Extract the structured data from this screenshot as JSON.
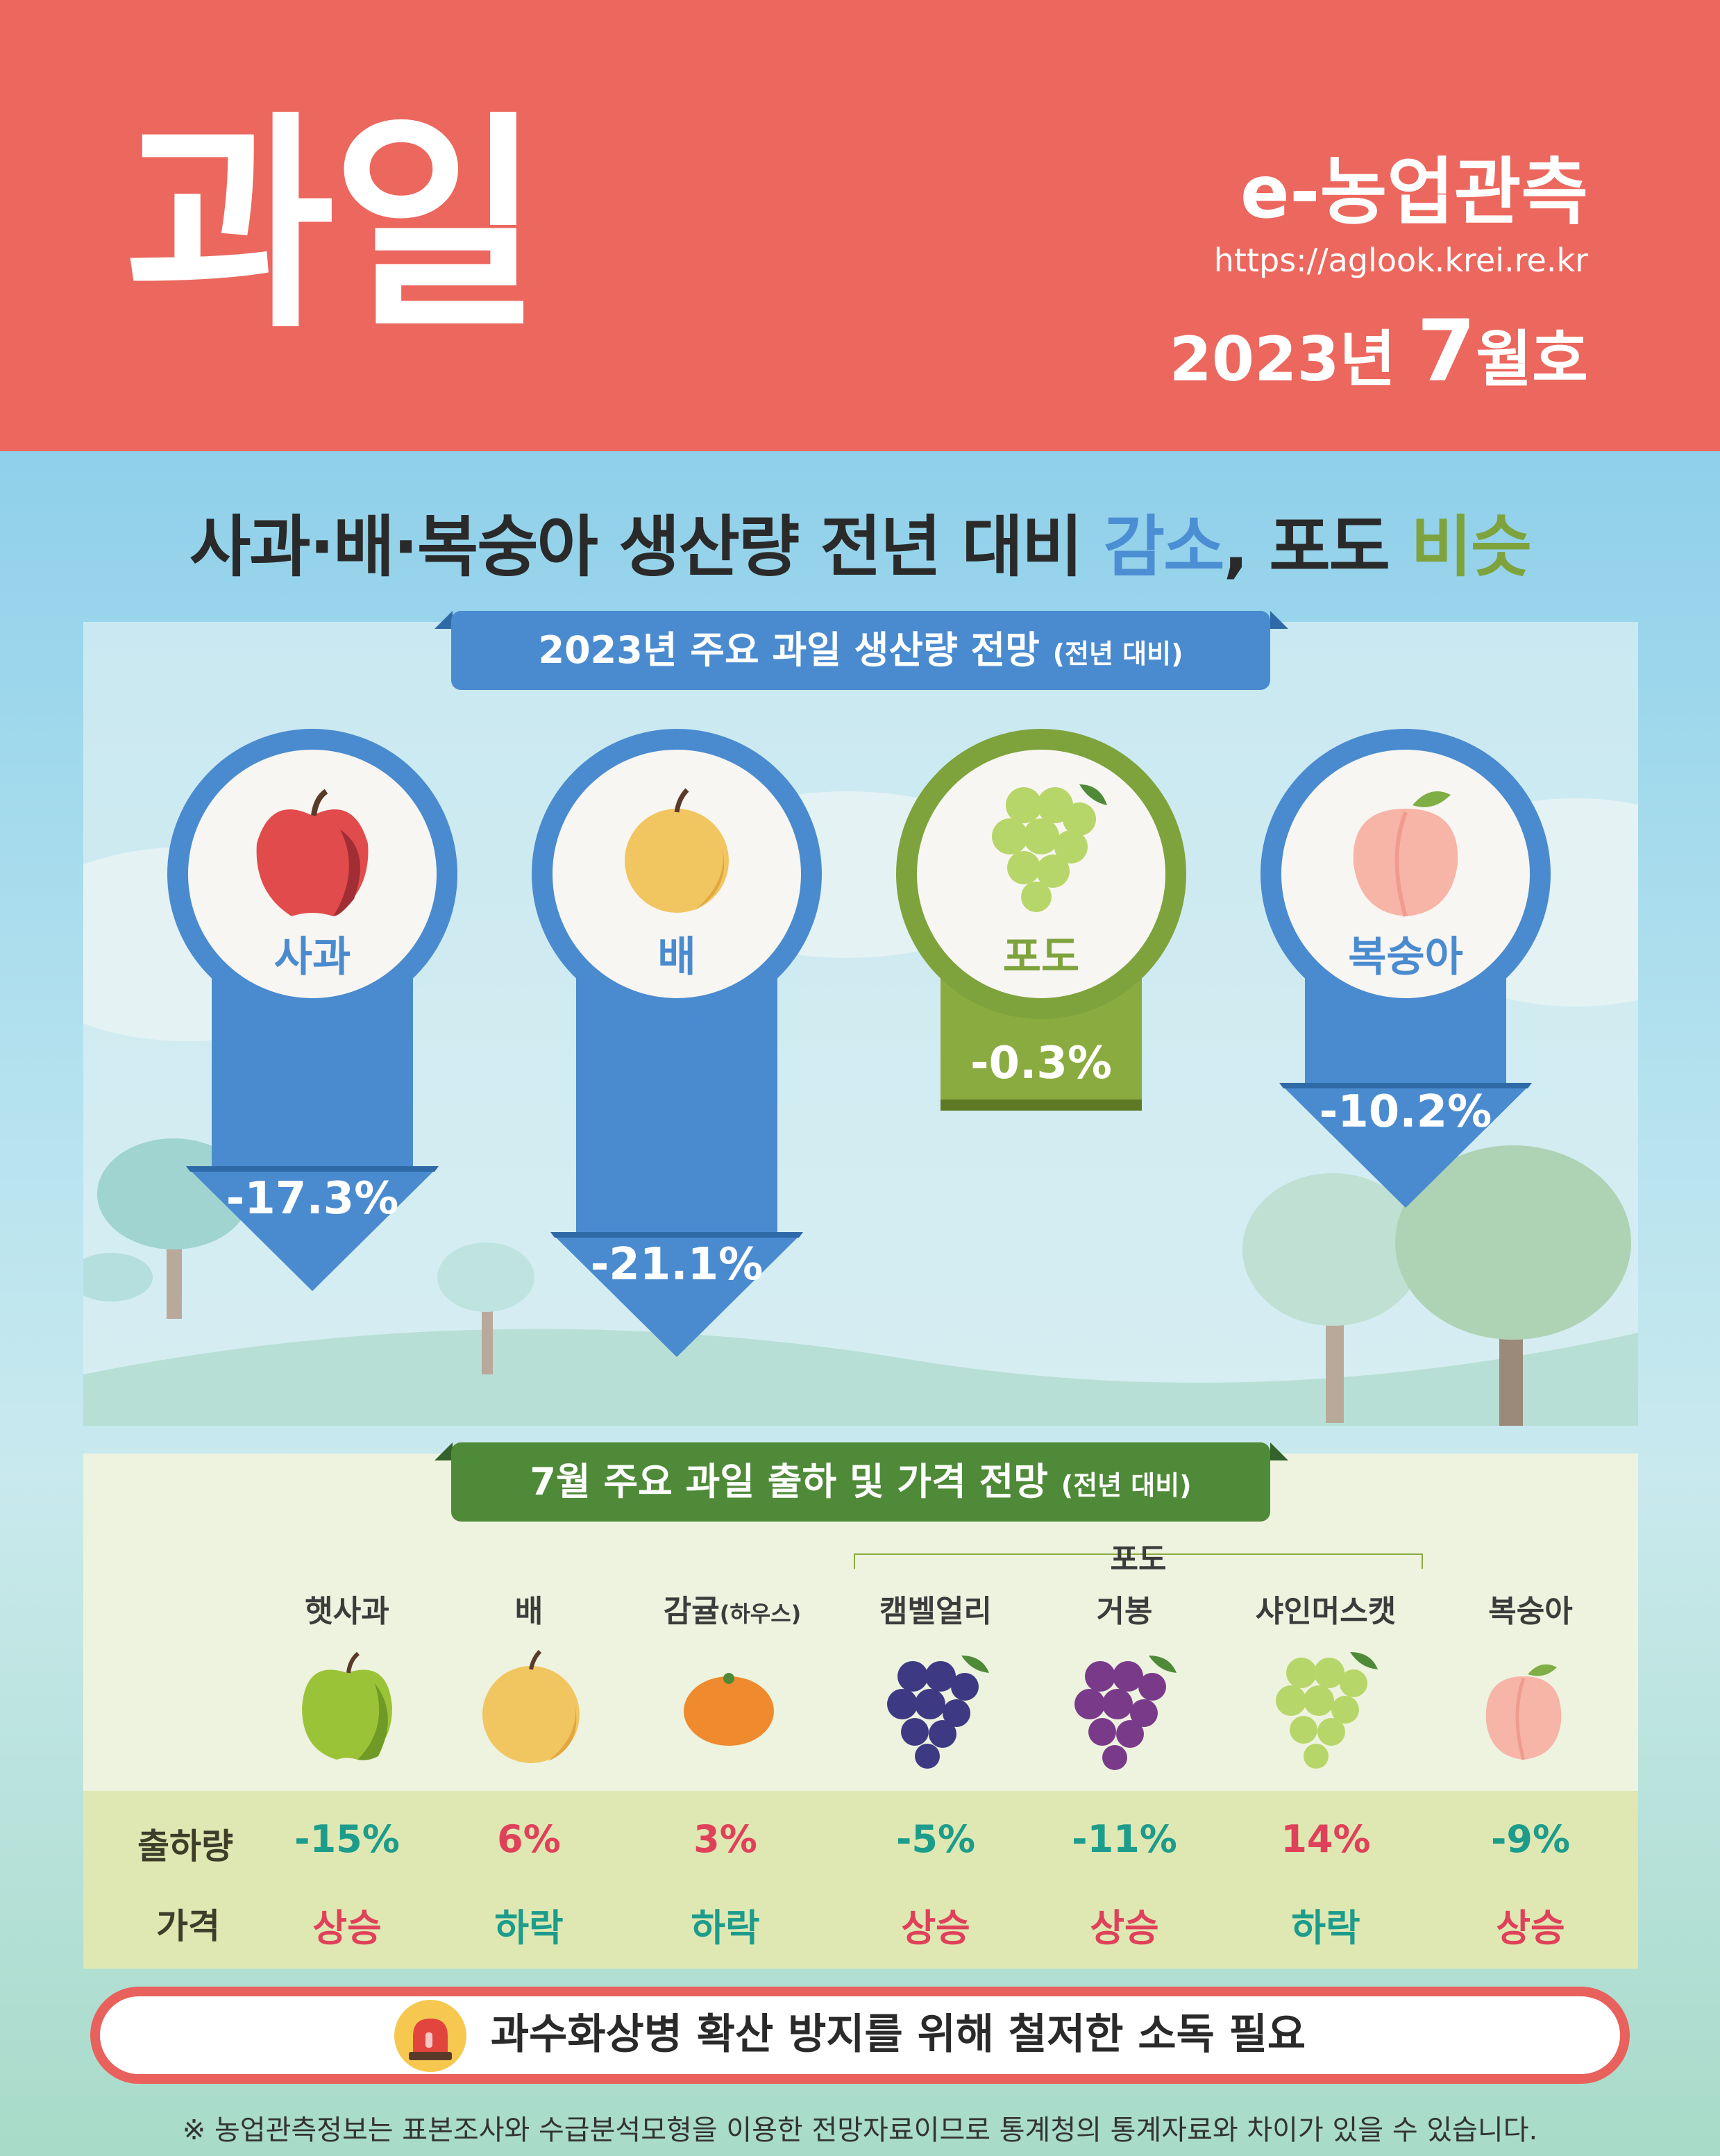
{
  "header": {
    "title": "과일",
    "brand": "e-농업관측",
    "url": "https://aglook.krei.re.kr",
    "issue_year": "2023년",
    "issue_month": "7",
    "issue_suffix": "월호"
  },
  "headline": {
    "part1": "사과·배·복숭아 생산량 전년 대비 ",
    "decrease": "감소",
    "part2": ", 포도 ",
    "similar": "비슷"
  },
  "production": {
    "title": "2023년 주요 과일 생산량 전망",
    "title_note": "(전년 대비)",
    "items": [
      {
        "name": "사과",
        "change": "-17.3%",
        "icon": "apple-icon",
        "color": "#4a8bd0"
      },
      {
        "name": "배",
        "change": "-21.1%",
        "icon": "pear-icon",
        "color": "#4a8bd0"
      },
      {
        "name": "포도",
        "change": "-0.3%",
        "icon": "grape-icon",
        "color": "#7ea33d"
      },
      {
        "name": "복숭아",
        "change": "-10.2%",
        "icon": "peach-icon",
        "color": "#4a8bd0"
      }
    ]
  },
  "shipment": {
    "title": "7월 주요 과일 출하 및 가격 전망",
    "title_note": "(전년 대비)",
    "grape_group": "포도",
    "row_labels": {
      "volume": "출하량",
      "price": "가격"
    },
    "columns": [
      {
        "name": "햇사과",
        "note": "",
        "volume": "-15%",
        "price": "상승",
        "icon": "green-apple-icon"
      },
      {
        "name": "배",
        "note": "",
        "volume": "6%",
        "price": "하락",
        "icon": "pear-icon"
      },
      {
        "name": "감귤",
        "note": "(하우스)",
        "volume": "3%",
        "price": "하락",
        "icon": "tangerine-icon"
      },
      {
        "name": "캠벨얼리",
        "note": "",
        "volume": "-5%",
        "price": "상승",
        "icon": "dark-grape-icon"
      },
      {
        "name": "거봉",
        "note": "",
        "volume": "-11%",
        "price": "상승",
        "icon": "purple-grape-icon"
      },
      {
        "name": "샤인머스캣",
        "note": "",
        "volume": "14%",
        "price": "하락",
        "icon": "green-grape-icon"
      },
      {
        "name": "복숭아",
        "note": "",
        "volume": "-9%",
        "price": "상승",
        "icon": "peach-icon"
      }
    ]
  },
  "alert": {
    "text": "과수화상병 확산 방지를 위해 철저한 소독 필요",
    "icon": "siren-icon"
  },
  "footnote": "※ 농업관측정보는 표본조사와 수급분석모형을 이용한 전망자료이므로 통계청의 통계자료와 차이가 있을 수 있습니다."
}
